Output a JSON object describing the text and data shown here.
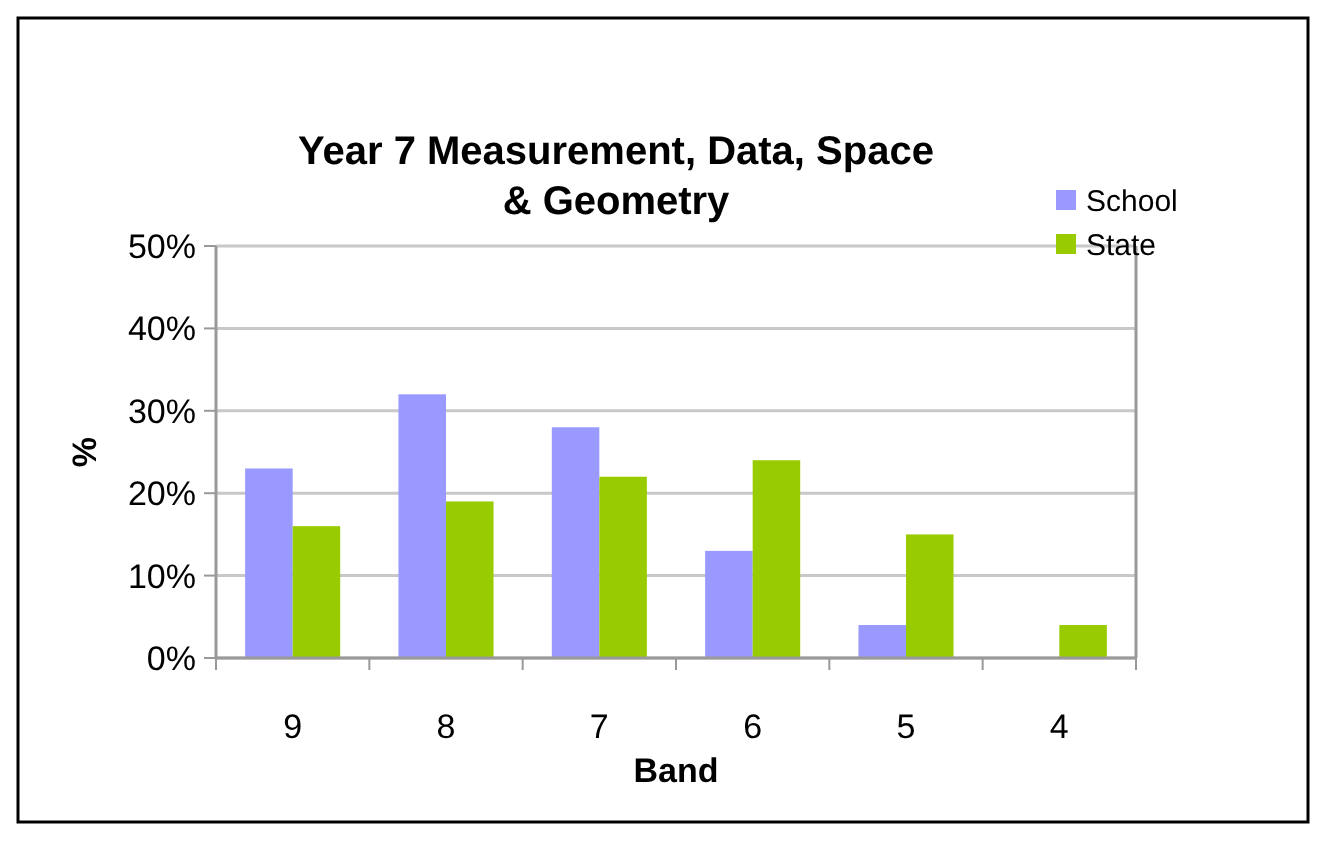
{
  "chart_data": {
    "type": "bar",
    "title": "Year 7 Measurement, Data, Space & Geometry",
    "xlabel": "Band",
    "ylabel": "%",
    "categories": [
      "9",
      "8",
      "7",
      "6",
      "5",
      "4"
    ],
    "series": [
      {
        "name": "School",
        "color": "#9999ff",
        "values": [
          23,
          32,
          28,
          13,
          4,
          0
        ]
      },
      {
        "name": "State",
        "color": "#99cc00",
        "values": [
          16,
          19,
          22,
          24,
          15,
          4
        ]
      }
    ],
    "ylim": [
      0,
      50
    ],
    "yticks": [
      {
        "value": 0,
        "label": "0%"
      },
      {
        "value": 10,
        "label": "10%"
      },
      {
        "value": 20,
        "label": "20%"
      },
      {
        "value": 30,
        "label": "30%"
      },
      {
        "value": 40,
        "label": "40%"
      },
      {
        "value": 50,
        "label": "50%"
      }
    ],
    "grid": "y",
    "legend": "top right"
  }
}
